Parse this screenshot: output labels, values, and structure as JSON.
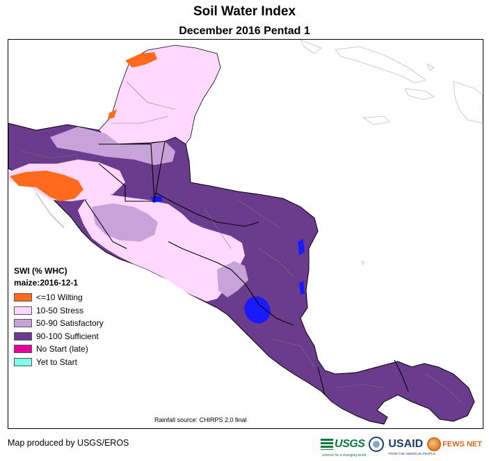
{
  "map": {
    "title": "Soil Water Index",
    "subtitle": "December 2016 Pentad 1",
    "source_note": "Rainfall source: CHIRPS 2.0 final"
  },
  "legend": {
    "title": "SWI (% WHC)",
    "subtitle": "maize:2016-12-1",
    "items": [
      {
        "label": "<=10 Wilting",
        "color": "#ff6a1c"
      },
      {
        "label": "10-50 Stress",
        "color": "#ffd8ff"
      },
      {
        "label": "50-90 Satisfactory",
        "color": "#c7a3d9"
      },
      {
        "label": "90-100 Sufficient",
        "color": "#6b3c8e"
      },
      {
        "label": "No Start (late)",
        "color": "#e8009a"
      },
      {
        "label": "Yet to Start",
        "color": "#7fffe8"
      }
    ]
  },
  "footer": {
    "credit": "Map produced by USGS/EROS"
  },
  "logos": {
    "usgs": "USGS",
    "usgs_tag": "science for a changing world",
    "usaid": "USAID",
    "usaid_tag": "FROM THE AMERICAN PEOPLE",
    "fews": "FEWS NET"
  }
}
